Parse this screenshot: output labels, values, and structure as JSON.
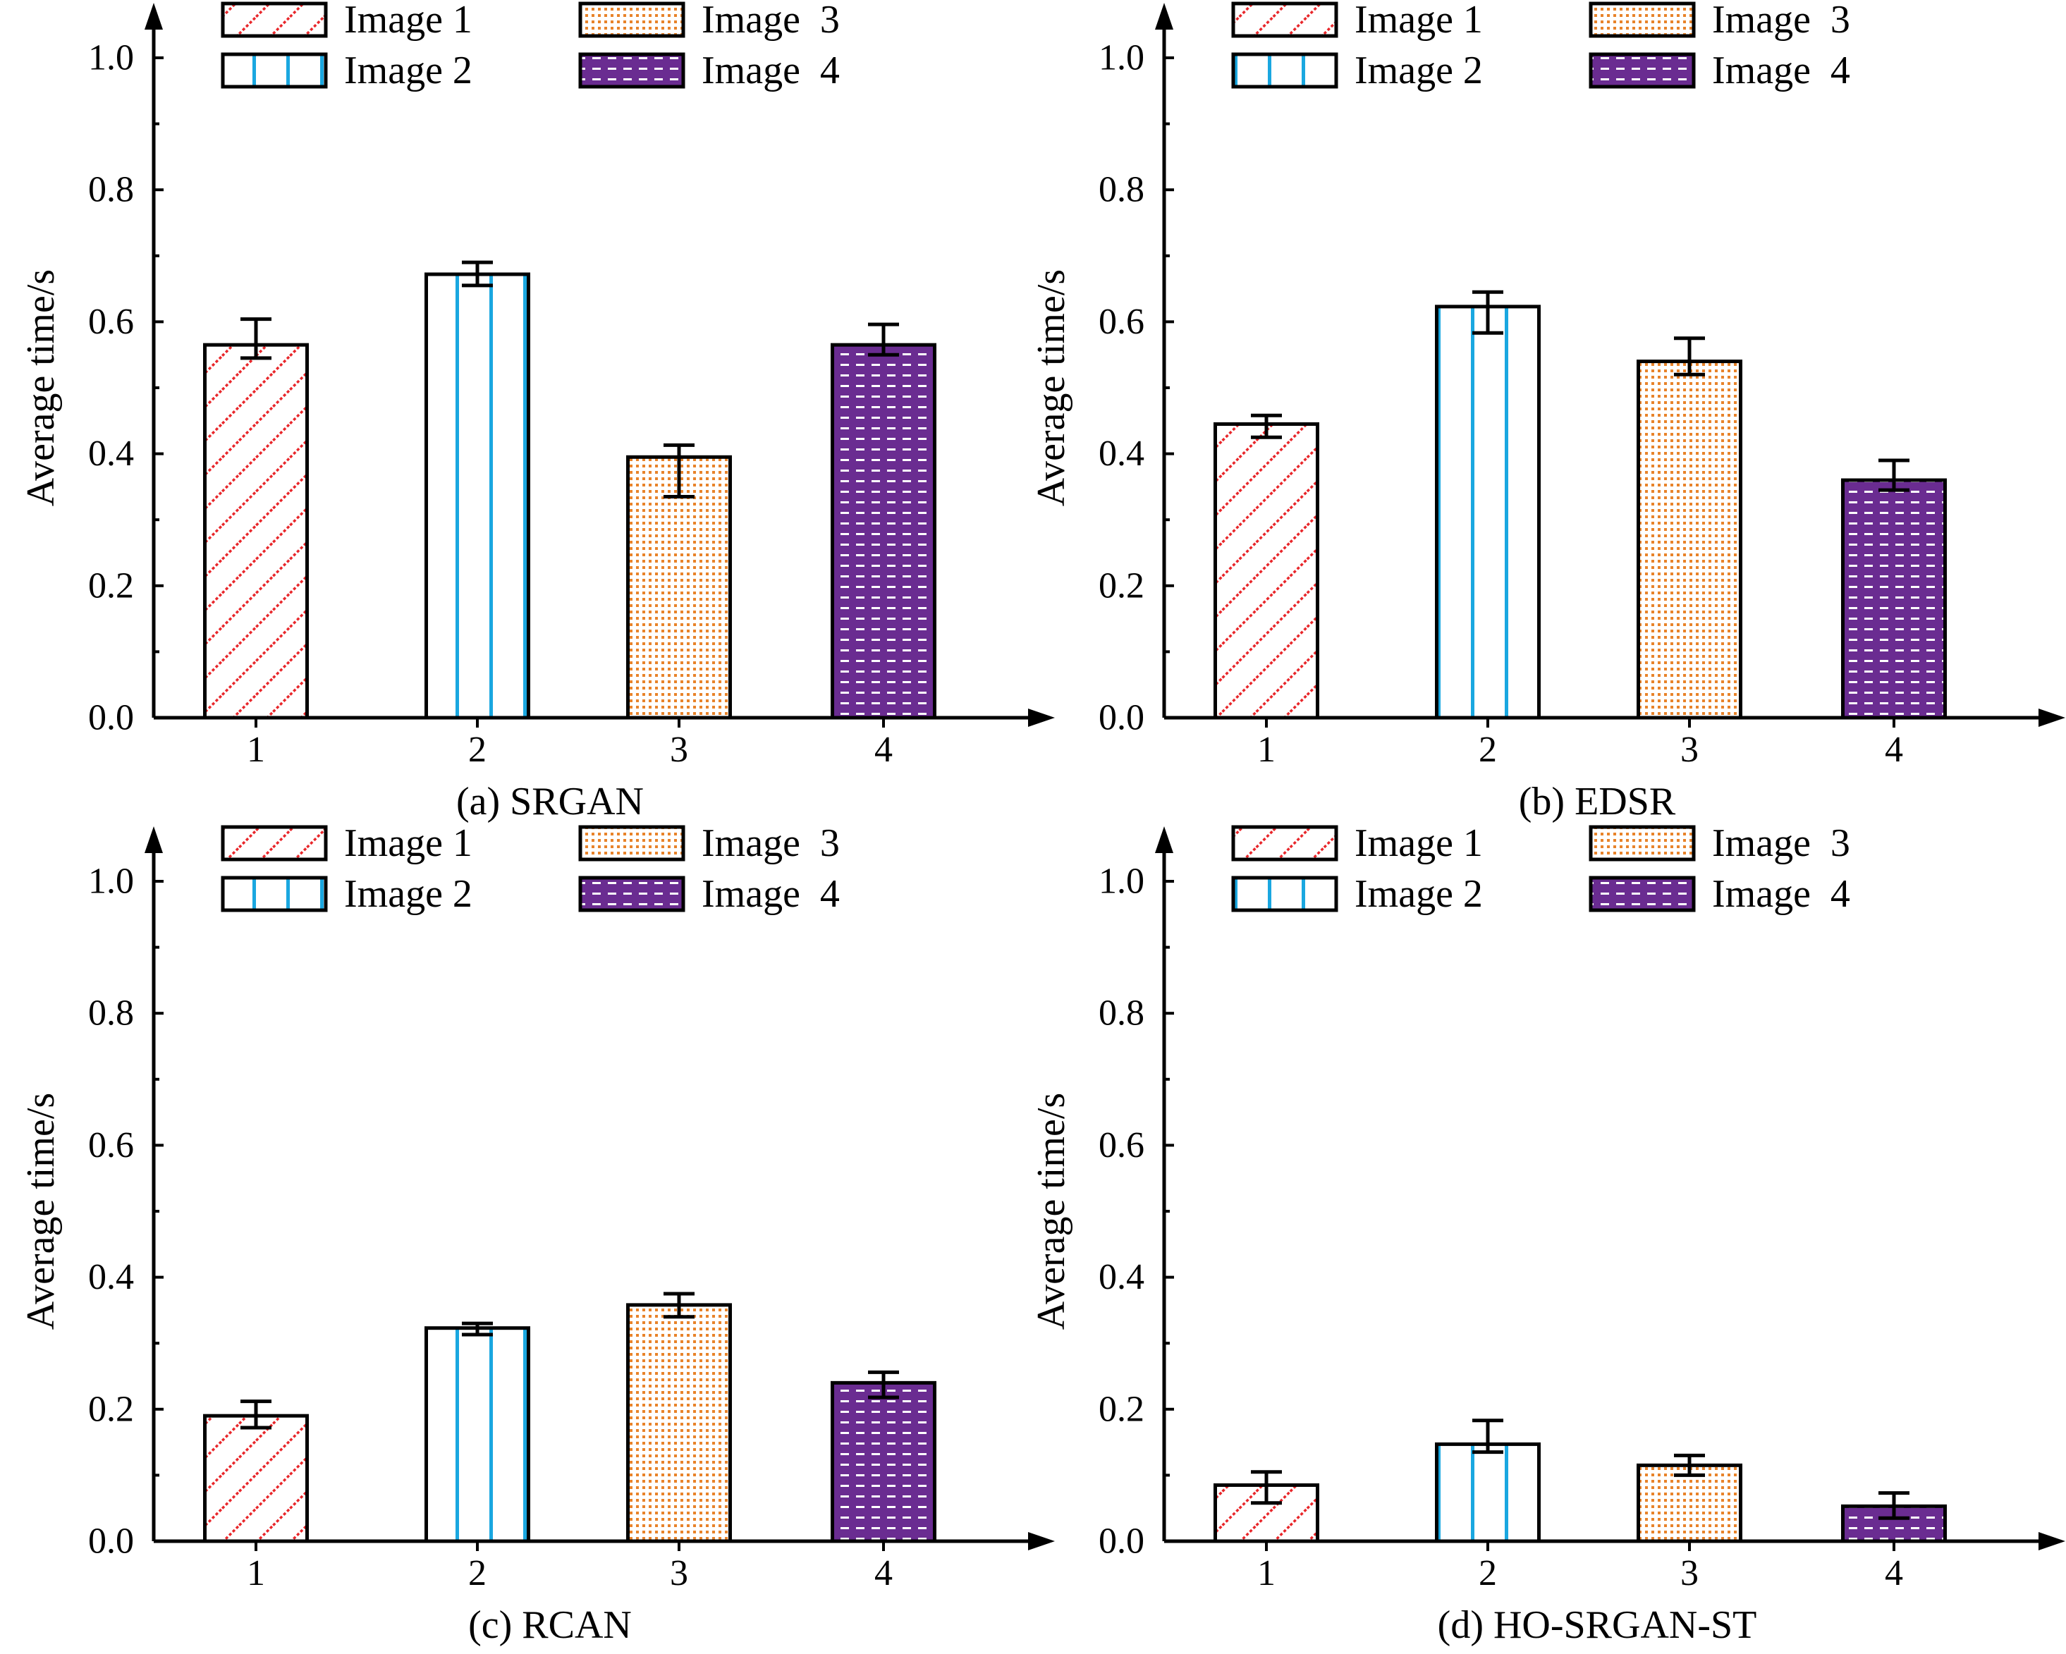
{
  "figure": {
    "legend_entries": [
      "Image 1",
      "Image 2",
      "Image  3",
      "Image  4"
    ],
    "series_colors": {
      "image1": "#e8262a",
      "image2": "#1aa7e0",
      "image3": "#e8832a",
      "image4": "#6a2c91"
    },
    "series_patterns": [
      "diagonal-hatch",
      "vertical-lines",
      "dots",
      "dashes"
    ]
  },
  "chart_data": [
    {
      "type": "bar",
      "caption": "(a) SRGAN",
      "ylabel": "Average time/s",
      "xlabel": "",
      "categories": [
        "1",
        "2",
        "3",
        "4"
      ],
      "values": [
        0.565,
        0.672,
        0.395,
        0.565
      ],
      "errors": [
        [
          0.545,
          0.604
        ],
        [
          0.655,
          0.69
        ],
        [
          0.335,
          0.413
        ],
        [
          0.55,
          0.596
        ]
      ],
      "ylim": [
        0,
        1.0
      ],
      "yticks": [
        "0.0",
        "0.2",
        "0.4",
        "0.6",
        "0.8",
        "1.0"
      ],
      "legend": [
        "Image 1",
        "Image 2",
        "Image  3",
        "Image  4"
      ],
      "legend_position": "top"
    },
    {
      "type": "bar",
      "caption": "(b) EDSR",
      "ylabel": "Average time/s",
      "xlabel": "",
      "categories": [
        "1",
        "2",
        "3",
        "4"
      ],
      "values": [
        0.445,
        0.623,
        0.54,
        0.36
      ],
      "errors": [
        [
          0.425,
          0.458
        ],
        [
          0.583,
          0.645
        ],
        [
          0.52,
          0.575
        ],
        [
          0.345,
          0.39
        ]
      ],
      "ylim": [
        0,
        1.0
      ],
      "yticks": [
        "0.0",
        "0.2",
        "0.4",
        "0.6",
        "0.8",
        "1.0"
      ],
      "legend": [
        "Image 1",
        "Image 2",
        "Image  3",
        "Image  4"
      ],
      "legend_position": "top"
    },
    {
      "type": "bar",
      "caption": "(c) RCAN",
      "ylabel": "Average time/s",
      "xlabel": "",
      "categories": [
        "1",
        "2",
        "3",
        "4"
      ],
      "values": [
        0.19,
        0.323,
        0.358,
        0.24
      ],
      "errors": [
        [
          0.172,
          0.212
        ],
        [
          0.313,
          0.33
        ],
        [
          0.34,
          0.375
        ],
        [
          0.218,
          0.256
        ]
      ],
      "ylim": [
        0,
        1.0
      ],
      "yticks": [
        "0.0",
        "0.2",
        "0.4",
        "0.6",
        "0.8",
        "1.0"
      ],
      "legend": [
        "Image 1",
        "Image 2",
        "Image  3",
        "Image  4"
      ],
      "legend_position": "top"
    },
    {
      "type": "bar",
      "caption": "(d) HO-SRGAN-ST",
      "ylabel": "Average time/s",
      "xlabel": "",
      "categories": [
        "1",
        "2",
        "3",
        "4"
      ],
      "values": [
        0.085,
        0.147,
        0.115,
        0.053
      ],
      "errors": [
        [
          0.058,
          0.105
        ],
        [
          0.135,
          0.183
        ],
        [
          0.1,
          0.13
        ],
        [
          0.035,
          0.073
        ]
      ],
      "ylim": [
        0,
        1.0
      ],
      "yticks": [
        "0.0",
        "0.2",
        "0.4",
        "0.6",
        "0.8",
        "1.0"
      ],
      "legend": [
        "Image 1",
        "Image 2",
        "Image  3",
        "Image  4"
      ],
      "legend_position": "top"
    }
  ]
}
